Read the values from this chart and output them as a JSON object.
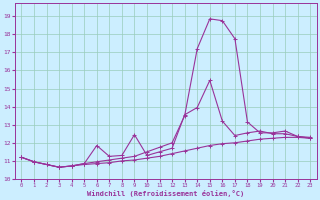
{
  "xlabel": "Windchill (Refroidissement éolien,°C)",
  "bg_color": "#cceeff",
  "line_color": "#993399",
  "grid_color": "#99ccbb",
  "xlim_min": -0.5,
  "xlim_max": 23.5,
  "ylim_min": 10.0,
  "ylim_max": 19.7,
  "yticks": [
    10,
    11,
    12,
    13,
    14,
    15,
    16,
    17,
    18,
    19
  ],
  "xticks": [
    0,
    1,
    2,
    3,
    4,
    5,
    6,
    7,
    8,
    9,
    10,
    11,
    12,
    13,
    14,
    15,
    16,
    17,
    18,
    19,
    20,
    21,
    22,
    23
  ],
  "series_flat_x": [
    0,
    1,
    2,
    3,
    4,
    5,
    6,
    7,
    8,
    9,
    10,
    11,
    12,
    13,
    14,
    15,
    16,
    17,
    18,
    19,
    20,
    21,
    22,
    23
  ],
  "series_flat_y": [
    11.2,
    10.95,
    10.8,
    10.65,
    10.72,
    10.8,
    10.85,
    10.9,
    11.0,
    11.05,
    11.15,
    11.25,
    11.4,
    11.55,
    11.7,
    11.85,
    11.95,
    12.0,
    12.1,
    12.2,
    12.25,
    12.3,
    12.3,
    12.25
  ],
  "series_mid_x": [
    0,
    1,
    2,
    3,
    4,
    5,
    6,
    7,
    8,
    9,
    10,
    11,
    12,
    13,
    14,
    15,
    16,
    17,
    18,
    19,
    20,
    21,
    22,
    23
  ],
  "series_mid_y": [
    11.2,
    10.95,
    10.8,
    10.65,
    10.72,
    10.85,
    11.85,
    11.25,
    11.3,
    12.45,
    11.3,
    11.5,
    11.7,
    13.55,
    13.95,
    15.45,
    13.2,
    12.4,
    12.55,
    12.65,
    12.5,
    12.5,
    12.35,
    12.3
  ],
  "series_peak_x": [
    0,
    1,
    2,
    3,
    4,
    5,
    6,
    7,
    8,
    9,
    10,
    11,
    12,
    13,
    14,
    15,
    16,
    17,
    18,
    19,
    20,
    21,
    22,
    23
  ],
  "series_peak_y": [
    11.2,
    10.95,
    10.8,
    10.65,
    10.72,
    10.85,
    10.95,
    11.05,
    11.15,
    11.25,
    11.5,
    11.75,
    12.0,
    13.5,
    17.2,
    18.85,
    18.75,
    17.75,
    13.15,
    12.55,
    12.55,
    12.65,
    12.35,
    12.25
  ]
}
